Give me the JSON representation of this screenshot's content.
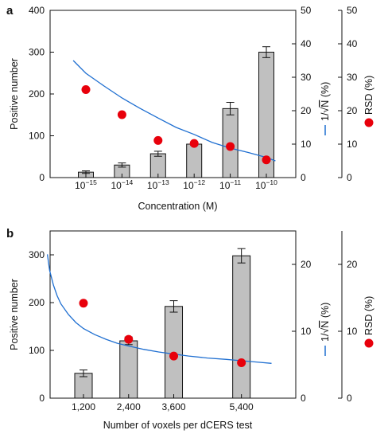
{
  "chart_data": [
    {
      "panel": "a",
      "type": "bar",
      "bar_color": "#c0c0c0",
      "line_color": "#1f6fd1",
      "dot_color": "#e8000b",
      "categories": [
        "1e-15",
        "1e-14",
        "1e-13",
        "1e-12",
        "1e-11",
        "1e-10"
      ],
      "tick_mantissa": "10",
      "tick_exponents": [
        "−15",
        "−14",
        "−13",
        "−12",
        "−11",
        "−10"
      ],
      "xlabel": "Concentration (M)",
      "ylabel": "Positive number",
      "ylim": [
        0,
        400
      ],
      "yticks": [
        0,
        100,
        200,
        300,
        400
      ],
      "bars": {
        "values": [
          13,
          30,
          57,
          80,
          165,
          300
        ],
        "errors": [
          3,
          5,
          6,
          3,
          15,
          13
        ]
      },
      "series": [
        {
          "name": "1/√N (%)",
          "type": "line",
          "axis": "right1",
          "x": [
            -15.35,
            -15,
            -14.5,
            -14,
            -13.5,
            -13,
            -12.5,
            -12,
            -11.5,
            -11,
            -10.5,
            -10,
            -9.75
          ],
          "y": [
            35.0,
            31.2,
            27.4,
            23.8,
            20.7,
            17.8,
            15.0,
            12.9,
            10.5,
            8.8,
            7.5,
            6.0,
            5.0
          ]
        },
        {
          "name": "RSD (%)",
          "type": "scatter",
          "axis": "right2",
          "x": [
            -15,
            -14,
            -13,
            -12,
            -11,
            -10
          ],
          "y": [
            26.3,
            18.8,
            11.1,
            10.2,
            9.3,
            5.3
          ]
        }
      ],
      "right_axis_1": {
        "ylim": [
          0,
          50
        ],
        "ticks": [
          0,
          10,
          20,
          30,
          40,
          50
        ],
        "label_prefix": "1/",
        "label_sqrt_n": "N",
        "label_suffix": " (%)"
      },
      "right_axis_2": {
        "ylim": [
          0,
          50
        ],
        "ticks": [
          0,
          10,
          20,
          30,
          40,
          50
        ],
        "label": "RSD (%)"
      },
      "grid": false
    },
    {
      "panel": "b",
      "type": "bar",
      "bar_color": "#c0c0c0",
      "line_color": "#1f6fd1",
      "dot_color": "#e8000b",
      "x_values": [
        1200,
        2400,
        3600,
        5400
      ],
      "x_tick_labels": [
        "1,200",
        "2,400",
        "3,600",
        "5,400"
      ],
      "xlabel": "Number of voxels per dCERS test",
      "ylabel": "Positive number",
      "ylim": [
        0,
        350
      ],
      "yticks": [
        0,
        100,
        200,
        300
      ],
      "bars": {
        "values": [
          52,
          120,
          192,
          298
        ],
        "errors": [
          7,
          8,
          12,
          15
        ]
      },
      "series": [
        {
          "name": "1/√N (%)",
          "type": "line",
          "axis": "right1",
          "x": [
            240,
            300,
            400,
            500,
            600,
            800,
            1000,
            1200,
            1500,
            1800,
            2100,
            2400,
            2800,
            3200,
            3600,
            4000,
            4500,
            5000,
            5400,
            5800,
            6200
          ],
          "y": [
            21.5,
            19.1,
            16.9,
            15.3,
            14.1,
            12.5,
            11.3,
            10.4,
            9.5,
            8.8,
            8.2,
            7.8,
            7.3,
            6.9,
            6.6,
            6.3,
            6.0,
            5.8,
            5.6,
            5.4,
            5.2
          ]
        },
        {
          "name": "RSD (%)",
          "type": "scatter",
          "axis": "right2",
          "x": [
            1200,
            2400,
            3600,
            5400
          ],
          "y": [
            14.2,
            8.8,
            6.3,
            5.3
          ]
        }
      ],
      "right_axis_1": {
        "ylim": [
          0,
          25
        ],
        "ticks": [
          0,
          10,
          20
        ],
        "label_prefix": "1/",
        "label_sqrt_n": "N",
        "label_suffix": " (%)"
      },
      "right_axis_2": {
        "ylim": [
          0,
          25
        ],
        "ticks": [
          0,
          10,
          20
        ],
        "label": "RSD (%)"
      },
      "grid": false
    }
  ]
}
